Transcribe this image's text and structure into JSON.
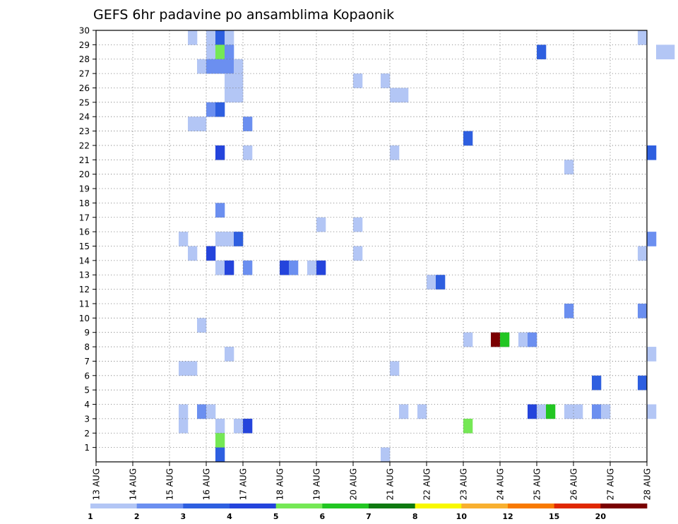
{
  "chart_data": {
    "type": "heatmap",
    "title": "GEFS 6hr padavine po ansamblima Kopaonik",
    "xlabel": "",
    "ylabel": "",
    "x_tick_labels": [
      "13 AUG",
      "14 AUG",
      "15 AUG",
      "16 AUG",
      "17 AUG",
      "18 AUG",
      "19 AUG",
      "20 AUG",
      "21 AUG",
      "22 AUG",
      "23 AUG",
      "24 AUG",
      "25 AUG",
      "26 AUG",
      "27 AUG",
      "28 AUG"
    ],
    "x_range_days": [
      13,
      28
    ],
    "x_step": "6hr",
    "y_tick_labels": [
      "1",
      "2",
      "3",
      "4",
      "5",
      "6",
      "7",
      "8",
      "9",
      "10",
      "11",
      "12",
      "13",
      "14",
      "15",
      "16",
      "17",
      "18",
      "19",
      "20",
      "21",
      "22",
      "23",
      "24",
      "25",
      "26",
      "27",
      "28",
      "29",
      "30"
    ],
    "y_range": [
      0,
      30
    ],
    "grid": true,
    "legend_placement": "bottom",
    "colorbar": {
      "labels": [
        "1",
        "2",
        "3",
        "4",
        "5",
        "6",
        "7",
        "8",
        "10",
        "12",
        "15",
        "20"
      ],
      "colors": [
        "#b3c6f5",
        "#6b8ff0",
        "#2e5fe0",
        "#2444dc",
        "#75e855",
        "#22c622",
        "#0f7a10",
        "#f8f800",
        "#f8b030",
        "#f87a00",
        "#e02800",
        "#7a0000"
      ]
    },
    "cells": [
      [
        15.5,
        30,
        1
      ],
      [
        16,
        30,
        1
      ],
      [
        16.25,
        30,
        3
      ],
      [
        16.5,
        30,
        1
      ],
      [
        27.75,
        30,
        1
      ],
      [
        16,
        29,
        1
      ],
      [
        16.25,
        29,
        5
      ],
      [
        16.5,
        29,
        2
      ],
      [
        25,
        29,
        3
      ],
      [
        28.25,
        29,
        1
      ],
      [
        28.5,
        29,
        1
      ],
      [
        15.75,
        28,
        1
      ],
      [
        16,
        28,
        2
      ],
      [
        16.25,
        28,
        2
      ],
      [
        16.5,
        28,
        2
      ],
      [
        16.75,
        28,
        1
      ],
      [
        16.5,
        27,
        1
      ],
      [
        16.75,
        27,
        1
      ],
      [
        20,
        27,
        1
      ],
      [
        20.75,
        27,
        1
      ],
      [
        16.5,
        26,
        1
      ],
      [
        16.75,
        26,
        1
      ],
      [
        21,
        26,
        1
      ],
      [
        21.25,
        26,
        1
      ],
      [
        16,
        25,
        2
      ],
      [
        16.25,
        25,
        3
      ],
      [
        15.5,
        24,
        1
      ],
      [
        15.75,
        24,
        1
      ],
      [
        17,
        24,
        2
      ],
      [
        23,
        23,
        3
      ],
      [
        16.25,
        22,
        4
      ],
      [
        17,
        22,
        1
      ],
      [
        21,
        22,
        1
      ],
      [
        28,
        22,
        3
      ],
      [
        25.75,
        21,
        1
      ],
      [
        16.25,
        18,
        2
      ],
      [
        19,
        17,
        1
      ],
      [
        20,
        17,
        1
      ],
      [
        15.25,
        16,
        1
      ],
      [
        16.25,
        16,
        1
      ],
      [
        16.5,
        16,
        1
      ],
      [
        16.75,
        16,
        3
      ],
      [
        28,
        16,
        2
      ],
      [
        15.5,
        15,
        1
      ],
      [
        16,
        15,
        4
      ],
      [
        20,
        15,
        1
      ],
      [
        27.75,
        15,
        1
      ],
      [
        16.25,
        14,
        1
      ],
      [
        16.5,
        14,
        4
      ],
      [
        17,
        14,
        2
      ],
      [
        18,
        14,
        4
      ],
      [
        18.25,
        14,
        2
      ],
      [
        18.75,
        14,
        1
      ],
      [
        19,
        14,
        4
      ],
      [
        22,
        13,
        1
      ],
      [
        22.25,
        13,
        3
      ],
      [
        25.75,
        11,
        2
      ],
      [
        27.75,
        11,
        2
      ],
      [
        15.75,
        10,
        1
      ],
      [
        23,
        9,
        1
      ],
      [
        23.75,
        9,
        12
      ],
      [
        24,
        9,
        6
      ],
      [
        24.5,
        9,
        1
      ],
      [
        24.75,
        9,
        2
      ],
      [
        16.5,
        8,
        1
      ],
      [
        28,
        8,
        1
      ],
      [
        15.25,
        7,
        1
      ],
      [
        15.5,
        7,
        1
      ],
      [
        21,
        7,
        1
      ],
      [
        26.5,
        6,
        3
      ],
      [
        27.75,
        6,
        3
      ],
      [
        15.25,
        4,
        1
      ],
      [
        15.75,
        4,
        2
      ],
      [
        16,
        4,
        1
      ],
      [
        21.25,
        4,
        1
      ],
      [
        21.75,
        4,
        1
      ],
      [
        24.75,
        4,
        4
      ],
      [
        25,
        4,
        1
      ],
      [
        25.25,
        4,
        6
      ],
      [
        25.75,
        4,
        1
      ],
      [
        26,
        4,
        1
      ],
      [
        26.5,
        4,
        2
      ],
      [
        26.75,
        4,
        1
      ],
      [
        28,
        4,
        1
      ],
      [
        15.25,
        3,
        1
      ],
      [
        16.25,
        3,
        1
      ],
      [
        16.75,
        3,
        1
      ],
      [
        17,
        3,
        4
      ],
      [
        23,
        3,
        5
      ],
      [
        16.25,
        2,
        5
      ],
      [
        16.25,
        1,
        3
      ],
      [
        20.75,
        1,
        1
      ]
    ]
  }
}
